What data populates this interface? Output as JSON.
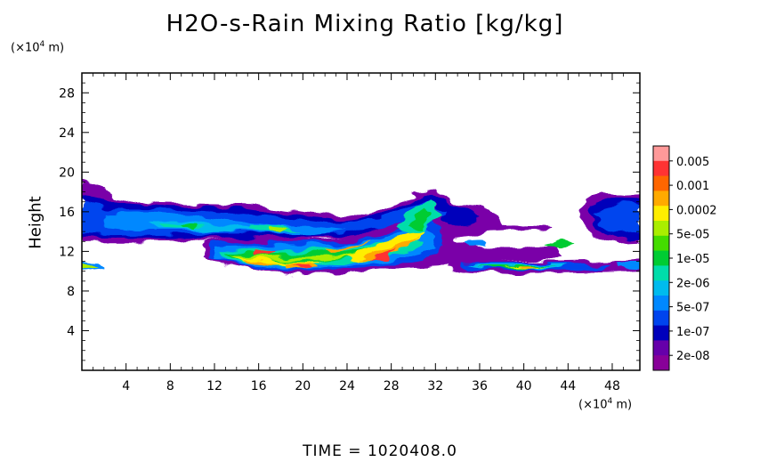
{
  "chart_data": {
    "type": "heatmap",
    "title": "H2O-s-Rain Mixing Ratio [kg/kg]",
    "ylabel": "Height",
    "y_unit_prefix": "(×10",
    "y_unit_exp": "4",
    "y_unit_suffix": " m)",
    "x_unit_prefix": "(×10",
    "x_unit_exp": "4",
    "x_unit_suffix": " m)",
    "time_label": "TIME = 1020408.0",
    "xlim": [
      0,
      50.5
    ],
    "ylim": [
      0,
      30
    ],
    "xticks": [
      4,
      8,
      12,
      16,
      20,
      24,
      28,
      32,
      36,
      40,
      44,
      48
    ],
    "yticks": [
      4,
      8,
      12,
      16,
      20,
      24,
      28
    ],
    "colorbar": {
      "labels": [
        "0.005",
        "0.001",
        "0.0002",
        "5e-05",
        "1e-05",
        "2e-06",
        "5e-07",
        "1e-07",
        "2e-08"
      ],
      "colors": [
        "#ff9999",
        "#ff3333",
        "#ff6600",
        "#ffaa00",
        "#ffee00",
        "#aaee00",
        "#44dd00",
        "#00cc33",
        "#00ddaa",
        "#00bbee",
        "#0088ff",
        "#0044ee",
        "#0000bb",
        "#6600aa",
        "#880099"
      ]
    },
    "regions": [
      {
        "level": "2e-08",
        "desc": "upper cloud band",
        "x": [
          0,
          50.5
        ],
        "y": [
          13,
          19
        ]
      },
      {
        "level": "5e-07",
        "desc": "upper band interior",
        "x": [
          0,
          32
        ],
        "y": [
          13.5,
          16.5
        ]
      },
      {
        "level": "5e-05",
        "desc": "lower rain layer",
        "x": [
          11,
          43
        ],
        "y": [
          9.5,
          13
        ]
      },
      {
        "level": "0.0002",
        "desc": "strong core",
        "x": [
          18,
          32
        ],
        "y": [
          9.5,
          15
        ]
      },
      {
        "level": "2e-08",
        "desc": "left low patch",
        "x": [
          0,
          2
        ],
        "y": [
          10,
          11
        ]
      },
      {
        "level": "2e-08",
        "desc": "right low band",
        "x": [
          33,
          50.5
        ],
        "y": [
          9.8,
          11
        ]
      }
    ]
  }
}
